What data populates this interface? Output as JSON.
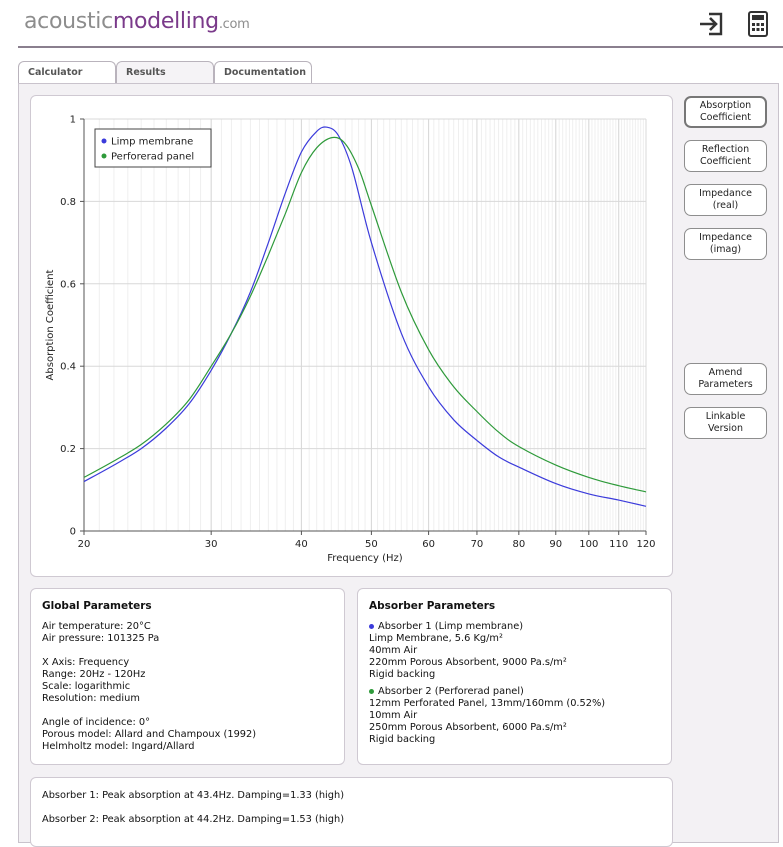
{
  "header": {
    "logo_part1": "acoustic",
    "logo_part2": "modelling",
    "logo_part3": ".com",
    "icons": [
      "sign-in-icon",
      "calculator-icon"
    ]
  },
  "tabs": [
    {
      "label": "Calculator"
    },
    {
      "label": "Results"
    },
    {
      "label": "Documentation"
    }
  ],
  "active_tab": "Results",
  "sidebar": {
    "buttons": [
      {
        "line1": "Absorption",
        "line2": "Coefficient"
      },
      {
        "line1": "Reflection",
        "line2": "Coefficient"
      },
      {
        "line1": "Impedance",
        "line2": "(real)"
      },
      {
        "line1": "Impedance",
        "line2": "(imag)"
      },
      {
        "line1": "Amend",
        "line2": "Parameters"
      },
      {
        "line1": "Linkable",
        "line2": "Version"
      }
    ]
  },
  "chart_data": {
    "type": "line",
    "xlabel": "Frequency (Hz)",
    "ylabel": "Absorption Coefficient",
    "xscale": "log",
    "xlim": [
      20,
      120
    ],
    "ylim": [
      0,
      1
    ],
    "xticks": [
      20,
      30,
      40,
      50,
      60,
      70,
      80,
      90,
      100,
      110,
      120
    ],
    "yticks": [
      0,
      0.2,
      0.4,
      0.6,
      0.8,
      1
    ],
    "ytick_labels": [
      "0",
      "0.2",
      "0.4",
      "0.6",
      "0.8",
      "1"
    ],
    "grid": true,
    "legend_position": "top-left",
    "series": [
      {
        "name": "Limp membrane",
        "color": "#3b3bdb",
        "x": [
          20,
          22,
          24,
          26,
          28,
          30,
          32,
          34,
          36,
          38,
          40,
          42,
          43.4,
          45,
          47,
          50,
          55,
          60,
          65,
          70,
          75,
          80,
          90,
          100,
          110,
          120
        ],
        "y": [
          0.12,
          0.16,
          0.2,
          0.25,
          0.31,
          0.39,
          0.48,
          0.58,
          0.7,
          0.82,
          0.92,
          0.97,
          0.98,
          0.96,
          0.88,
          0.7,
          0.48,
          0.35,
          0.27,
          0.22,
          0.18,
          0.155,
          0.115,
          0.09,
          0.075,
          0.06
        ]
      },
      {
        "name": "Perforerad panel",
        "color": "#2e9a3a",
        "x": [
          20,
          22,
          24,
          26,
          28,
          30,
          32,
          34,
          36,
          38,
          40,
          42,
          44.2,
          46,
          48,
          50,
          55,
          60,
          65,
          70,
          75,
          80,
          90,
          100,
          110,
          120
        ],
        "y": [
          0.13,
          0.17,
          0.21,
          0.26,
          0.32,
          0.4,
          0.48,
          0.57,
          0.67,
          0.77,
          0.87,
          0.93,
          0.955,
          0.94,
          0.88,
          0.79,
          0.58,
          0.44,
          0.35,
          0.29,
          0.24,
          0.205,
          0.16,
          0.13,
          0.11,
          0.095
        ]
      }
    ]
  },
  "global_params": {
    "title": "Global Parameters",
    "lines": [
      "Air temperature: 20°C",
      "Air pressure: 101325 Pa",
      "",
      "X Axis: Frequency",
      "Range: 20Hz - 120Hz",
      "Scale: logarithmic",
      "Resolution: medium",
      "",
      "Angle of incidence: 0°",
      "Porous model: Allard and Champoux (1992)",
      "Helmholtz model: Ingard/Allard"
    ]
  },
  "absorber_params": {
    "title": "Absorber Parameters",
    "absorber1": {
      "heading": "Absorber 1 (Limp membrane)",
      "lines": [
        "Limp Membrane, 5.6 Kg/m²",
        "40mm Air",
        "220mm Porous Absorbent, 9000 Pa.s/m²",
        "Rigid backing"
      ]
    },
    "absorber2": {
      "heading": "Absorber 2 (Perforerad panel)",
      "lines": [
        "12mm Perforated Panel, 13mm/160mm (0.52%)",
        "10mm Air",
        "250mm Porous Absorbent, 6000 Pa.s/m²",
        "Rigid backing"
      ]
    }
  },
  "summary": {
    "line1": "Absorber 1: Peak absorption at 43.4Hz. Damping=1.33 (high)",
    "line2": "Absorber 2: Peak absorption at 44.2Hz. Damping=1.53 (high)"
  }
}
